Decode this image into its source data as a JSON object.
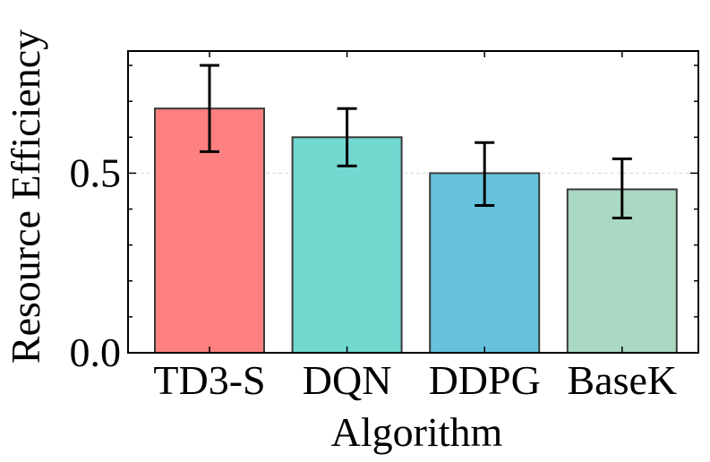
{
  "chart_data": {
    "type": "bar",
    "title": "",
    "xlabel": "Algorithm",
    "ylabel": "Resource Efficiency",
    "categories": [
      "TD3-S",
      "DQN",
      "DDPG",
      "BaseK"
    ],
    "series": [
      {
        "values": [
          0.68,
          0.6,
          0.5,
          0.455
        ],
        "error_low": [
          0.56,
          0.52,
          0.41,
          0.375
        ],
        "error_high": [
          0.8,
          0.68,
          0.585,
          0.54
        ]
      }
    ],
    "colors": [
      "#ff8080",
      "#72d8d0",
      "#66c2dc",
      "#a9d8c3"
    ],
    "bar_edge_color": "#3a3a3a",
    "ylim": [
      0,
      0.84
    ],
    "yticks": [
      {
        "value": 0.0,
        "label": "0.0"
      },
      {
        "value": 0.5,
        "label": "0.5"
      }
    ],
    "minor_ytick_step": 0.1,
    "gridline_at": 0.5,
    "grid": "dashed-horizontal-at-major"
  }
}
